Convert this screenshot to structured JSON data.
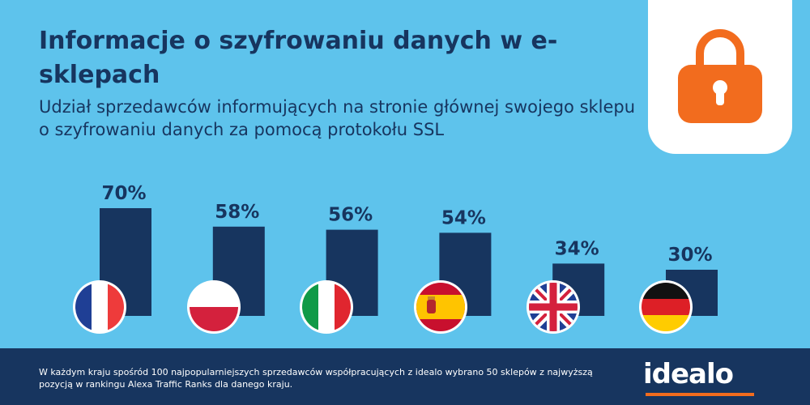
{
  "header": {
    "title": "Informacje o szyfrowaniu danych w e-sklepach",
    "subtitle": "Udział sprzedawców informujących na stronie głównej swojego sklepu o szyfrowaniu danych za pomocą protokołu SSL"
  },
  "lock_icon": {
    "name": "lock-icon",
    "color": "#f26c1e"
  },
  "colors": {
    "background": "#5ec3ec",
    "bar": "#17355f",
    "text": "#17355f",
    "footer": "#17355f",
    "accent": "#f26c1e"
  },
  "chart_data": {
    "type": "bar",
    "categories": [
      "France",
      "Poland",
      "Italy",
      "Spain",
      "United Kingdom",
      "Germany"
    ],
    "flags": [
      "france-flag-icon",
      "poland-flag-icon",
      "italy-flag-icon",
      "spain-flag-icon",
      "uk-flag-icon",
      "germany-flag-icon"
    ],
    "values": [
      70,
      58,
      56,
      54,
      34,
      30
    ],
    "labels": [
      "70%",
      "58%",
      "56%",
      "54%",
      "34%",
      "30%"
    ],
    "unit": "%",
    "ylim": [
      0,
      100
    ],
    "grid": false,
    "legend": "none"
  },
  "footer": {
    "note": "W każdym kraju spośród 100 najpopularniejszych sprzedawców współpracujących z idealo wybrano 50 sklepów z najwyższą pozycją w rankingu Alexa Traffic Ranks dla danego kraju.",
    "brand": "idealo"
  }
}
